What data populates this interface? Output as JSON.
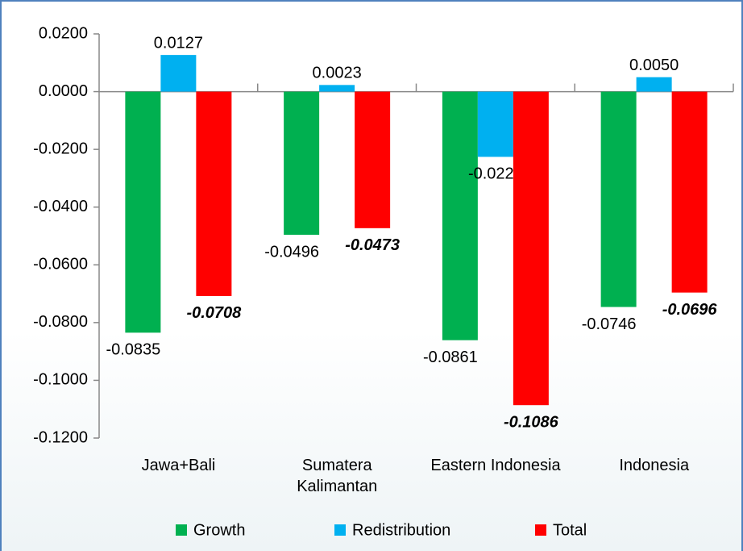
{
  "chart_data": {
    "type": "bar",
    "categories": [
      "Jawa+Bali",
      "Sumatera\nKalimantan",
      "Eastern Indonesia",
      "Indonesia"
    ],
    "series": [
      {
        "name": "Growth",
        "color": "#00b050",
        "values": [
          -0.0835,
          -0.0496,
          -0.0861,
          -0.0746
        ],
        "value_labels": [
          "-0.0835",
          "-0.0496",
          "-0.0861",
          "-0.0746"
        ]
      },
      {
        "name": "Redistribution",
        "color": "#00b0f0",
        "values": [
          0.0127,
          0.0023,
          -0.0226,
          0.005
        ],
        "value_labels": [
          "0.0127",
          "0.0023",
          "-0.0226",
          "0.0050"
        ]
      },
      {
        "name": "Total",
        "color": "#ff0000",
        "values": [
          -0.0708,
          -0.0473,
          -0.1086,
          -0.0696
        ],
        "value_labels": [
          "-0.0708",
          "-0.0473",
          "-0.1086",
          "-0.0696"
        ]
      }
    ],
    "ylim": [
      -0.12,
      0.02
    ],
    "yticks": [
      {
        "value": 0.02,
        "label": "0.0200"
      },
      {
        "value": 0,
        "label": "0.0000"
      },
      {
        "value": -0.02,
        "label": "-0.0200"
      },
      {
        "value": -0.04,
        "label": "-0.0400"
      },
      {
        "value": -0.06,
        "label": "-0.0600"
      },
      {
        "value": -0.08,
        "label": "-0.0800"
      },
      {
        "value": -0.1,
        "label": "-0.1000"
      },
      {
        "value": -0.12,
        "label": "-0.1200"
      }
    ],
    "grid": false
  }
}
